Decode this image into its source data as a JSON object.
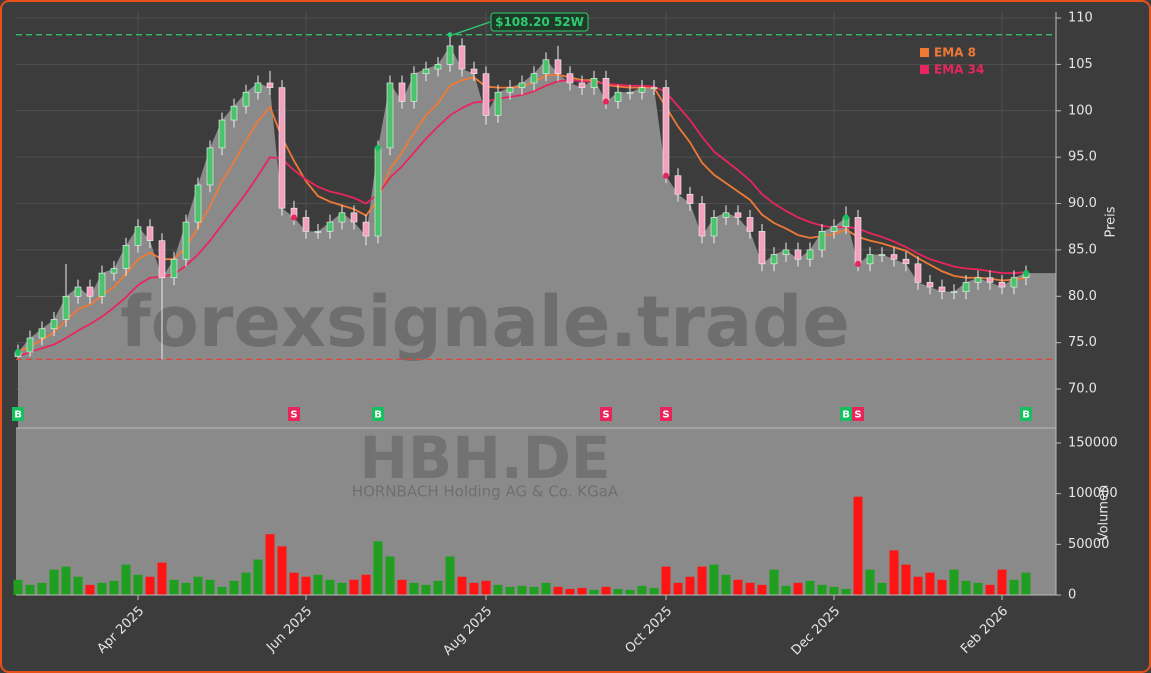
{
  "chart_data": {
    "type": "candlestick",
    "watermark": "forexsignale.trade",
    "symbol": "HBH.DE",
    "company": "HORNBACH Holding AG & Co. KGaA",
    "y_label": "Preis",
    "volume_label": "Volumen",
    "high_52w": 108.2,
    "high_label": "$108.20 52W",
    "high_index_candle": 36,
    "low_52w": 73.2,
    "high_color": "#2ecc71",
    "low_color": "#e0453a",
    "up_color": "#49c46a",
    "down_color": "#f2a0bd",
    "volume_up_color": "#1f9e1f",
    "volume_down_color": "#ff1414",
    "area_color": "#8a8a8a",
    "signal_colors": {
      "B": "#16c060",
      "S": "#e8245a"
    },
    "grid": true,
    "legend": "upper-right",
    "ylim": [
      65.8,
      110.65
    ],
    "yticks": [
      {
        "value": 70,
        "label": "70.0"
      },
      {
        "value": 75,
        "label": "75.0"
      },
      {
        "value": 80,
        "label": "80.0"
      },
      {
        "value": 85,
        "label": "85.0"
      },
      {
        "value": 90,
        "label": "90.0"
      },
      {
        "value": 95,
        "label": "95.0"
      },
      {
        "value": 100,
        "label": "100"
      },
      {
        "value": 105,
        "label": "105"
      },
      {
        "value": 110,
        "label": "110"
      }
    ],
    "volume_ylim": [
      0,
      164800
    ],
    "volume_yticks": [
      0,
      50000,
      100000,
      150000
    ],
    "categories": [
      null,
      null,
      null,
      null,
      null,
      null,
      null,
      null,
      null,
      null,
      "Apr 2025",
      null,
      null,
      null,
      null,
      null,
      null,
      null,
      null,
      null,
      null,
      null,
      null,
      null,
      "Jun 2025",
      null,
      null,
      null,
      null,
      null,
      null,
      null,
      null,
      null,
      null,
      null,
      null,
      null,
      null,
      "Aug 2025",
      null,
      null,
      null,
      null,
      null,
      null,
      null,
      null,
      null,
      null,
      null,
      null,
      null,
      null,
      "Oct 2025",
      null,
      null,
      null,
      null,
      null,
      null,
      null,
      null,
      null,
      null,
      null,
      null,
      null,
      "Dec 2025",
      null,
      null,
      null,
      null,
      null,
      null,
      null,
      null,
      null,
      null,
      null,
      null,
      null,
      "Feb 2026",
      null,
      null
    ],
    "signals": [
      "B",
      null,
      null,
      null,
      null,
      null,
      null,
      null,
      null,
      null,
      null,
      null,
      null,
      null,
      null,
      null,
      null,
      null,
      null,
      null,
      null,
      null,
      null,
      "S",
      null,
      null,
      null,
      null,
      null,
      null,
      "B",
      null,
      null,
      null,
      null,
      null,
      null,
      null,
      null,
      null,
      null,
      null,
      null,
      null,
      null,
      null,
      null,
      null,
      null,
      "S",
      null,
      null,
      null,
      null,
      "S",
      null,
      null,
      null,
      null,
      null,
      null,
      null,
      null,
      null,
      null,
      null,
      null,
      null,
      null,
      "B",
      "S",
      null,
      null,
      null,
      null,
      null,
      null,
      null,
      null,
      null,
      null,
      null,
      null,
      null,
      "B"
    ],
    "open": [
      73.5,
      74,
      75.5,
      76.5,
      77.5,
      80,
      81,
      80,
      82.5,
      83,
      85.5,
      87.5,
      86,
      82,
      84,
      88,
      92,
      96,
      99,
      100.5,
      102,
      103,
      102.5,
      89.5,
      88.5,
      87,
      87,
      88,
      89,
      88,
      86.5,
      96,
      103,
      101,
      104,
      104.5,
      105,
      107,
      104.5,
      104,
      99.5,
      102,
      102.5,
      103,
      104,
      105.5,
      104,
      103,
      102.5,
      103.5,
      101,
      102,
      102,
      102.5,
      102.5,
      93,
      91,
      90,
      86.5,
      88.5,
      89,
      88.5,
      87,
      83.5,
      84.5,
      85,
      84,
      85,
      87,
      87.5,
      88.5,
      83.5,
      84.5,
      84.5,
      84,
      83.5,
      81.5,
      81,
      80.5,
      80.5,
      81.5,
      82,
      81.5,
      81,
      82
    ],
    "high": [
      74.8,
      76.3,
      77.3,
      78.3,
      83.5,
      81.8,
      81.8,
      83.3,
      83.8,
      86.3,
      88.3,
      88.3,
      86.8,
      84.8,
      88.8,
      92.8,
      96.8,
      99.8,
      101.3,
      102.8,
      103.8,
      104.3,
      103.3,
      90.3,
      89.3,
      87.8,
      88.8,
      89.8,
      89.8,
      88.8,
      96.8,
      103.8,
      103.8,
      104.8,
      105.3,
      105.8,
      108.2,
      107.8,
      105.3,
      104.8,
      102.8,
      103.3,
      103.8,
      104.8,
      106.3,
      107,
      104.8,
      103.8,
      104.3,
      104.3,
      102.8,
      102.8,
      103.3,
      103.3,
      103.3,
      93.8,
      91.8,
      90.8,
      89.3,
      89.8,
      89.8,
      89.3,
      87.8,
      85.3,
      85.8,
      85.8,
      85.8,
      87.8,
      88.3,
      89.7,
      89.3,
      85.3,
      85.3,
      85.3,
      84.8,
      84.3,
      82.3,
      81.8,
      81.3,
      82.3,
      82.8,
      82.8,
      82.3,
      82.8,
      83.3
    ],
    "low": [
      73.3,
      73.5,
      74.7,
      75.7,
      76.7,
      79.2,
      79.2,
      79.2,
      81.7,
      82.2,
      84.7,
      85.2,
      73.2,
      81.2,
      83.2,
      87.2,
      91.2,
      95.2,
      98.2,
      99.7,
      101.2,
      101.7,
      88.7,
      87.7,
      86.2,
      86.2,
      86.2,
      87.2,
      87.2,
      85.5,
      85.7,
      95.2,
      100.2,
      100.2,
      103.2,
      103.7,
      104.2,
      103.7,
      103.2,
      98.5,
      98.7,
      101.2,
      101.7,
      102.2,
      103.2,
      103.2,
      102.2,
      101.7,
      101.7,
      100.2,
      100.2,
      101.2,
      101.2,
      101.7,
      92.2,
      90.2,
      89.2,
      85.7,
      85.7,
      87.7,
      87.7,
      86.2,
      82.7,
      82.7,
      83.7,
      83.2,
      83.2,
      84.2,
      86.2,
      86.7,
      82.7,
      82.7,
      83.7,
      83.2,
      82.7,
      80.7,
      80.2,
      79.7,
      79.7,
      79.7,
      80.7,
      80.7,
      80.2,
      80.2,
      81.2
    ],
    "close": [
      74,
      75.5,
      76.5,
      77.5,
      80,
      81,
      80,
      82.5,
      83,
      85.5,
      87.5,
      86,
      82,
      84,
      88,
      92,
      96,
      99,
      100.5,
      102,
      103,
      102.5,
      89.5,
      88.5,
      87,
      87,
      88,
      89,
      88,
      86.5,
      96,
      103,
      101,
      104,
      104.5,
      105,
      107,
      104.5,
      104,
      99.5,
      102,
      102.5,
      103,
      104,
      105.5,
      104,
      103,
      102.5,
      103.5,
      101,
      102,
      102,
      102.5,
      102.5,
      93,
      91,
      90,
      86.5,
      88.5,
      89,
      88.5,
      87,
      83.5,
      84.5,
      85,
      84,
      85,
      87,
      87.5,
      88.5,
      83.5,
      84.5,
      84.5,
      84,
      83.5,
      81.5,
      81,
      80.5,
      80.5,
      81.5,
      82,
      81.5,
      81,
      82,
      82.5
    ],
    "volume": [
      15000,
      10000,
      12000,
      25000,
      28000,
      18000,
      10000,
      12000,
      14000,
      30000,
      20000,
      18000,
      32000,
      15000,
      12000,
      18000,
      15000,
      8000,
      14000,
      22000,
      35000,
      60000,
      48000,
      22000,
      18000,
      20000,
      15000,
      12000,
      15000,
      20000,
      53000,
      38000,
      15000,
      12000,
      10000,
      14000,
      38000,
      18000,
      12000,
      14000,
      10000,
      8000,
      9000,
      8000,
      12000,
      8000,
      6000,
      7000,
      5000,
      8000,
      6000,
      5000,
      9000,
      7000,
      28000,
      12000,
      18000,
      28000,
      30000,
      20000,
      15000,
      12000,
      10000,
      25000,
      9000,
      12000,
      14000,
      10000,
      8000,
      6000,
      97000,
      25000,
      12000,
      44000,
      30000,
      18000,
      22000,
      15000,
      25000,
      14000,
      12000,
      10000,
      25000,
      15000,
      22000
    ],
    "ema": [
      {
        "name": "EMA 8",
        "color": "#f07a35",
        "values": [
          74,
          74.6,
          75.3,
          76.1,
          77.4,
          78.6,
          79.1,
          80.1,
          81,
          82.4,
          84,
          84.7,
          84,
          84,
          85.3,
          87.4,
          89.7,
          92.4,
          94.5,
          96.8,
          98.9,
          100.4,
          97.1,
          94.6,
          92.4,
          90.8,
          90.2,
          89.8,
          89.4,
          88.7,
          90.4,
          93.7,
          95.5,
          97.6,
          99.5,
          100.8,
          102.7,
          103.3,
          103.6,
          102.6,
          102.5,
          102.5,
          102.6,
          103.1,
          103.8,
          103.9,
          103.6,
          103.3,
          103.3,
          102.8,
          102.6,
          102.5,
          102.5,
          102.5,
          100.4,
          98.3,
          96.6,
          94.4,
          93.1,
          92.2,
          91.3,
          90.4,
          88.8,
          87.9,
          87.3,
          86.6,
          86.3,
          86.5,
          86.7,
          87.2,
          86.4,
          86,
          85.7,
          85.3,
          84.9,
          84.1,
          83.4,
          82.7,
          82.2,
          82,
          82,
          81.9,
          81.7,
          81.8,
          82
        ]
      },
      {
        "name": "EMA 34",
        "color": "#e8265e",
        "values": [
          73.5,
          74,
          74.4,
          74.8,
          75.5,
          76.3,
          77,
          77.8,
          78.8,
          79.9,
          81.2,
          82,
          82.1,
          82.4,
          83.3,
          84.5,
          86,
          87.7,
          89.4,
          91.1,
          93,
          95,
          94.8,
          93.6,
          92.6,
          91.8,
          91.3,
          91,
          90.6,
          90,
          91,
          92.8,
          94,
          95.5,
          97,
          98.3,
          99.5,
          100.3,
          100.9,
          101,
          101.3,
          101.5,
          101.7,
          102.1,
          102.7,
          103.2,
          103.3,
          103.2,
          103.1,
          102.9,
          102.8,
          102.7,
          102.7,
          102.6,
          102,
          100.5,
          99,
          97.2,
          95.6,
          94.6,
          93.6,
          92.5,
          91,
          90,
          89.2,
          88.5,
          88,
          87.6,
          87.4,
          87.5,
          87.3,
          86.8,
          86.4,
          85.9,
          85.3,
          84.6,
          84,
          83.6,
          83.2,
          83,
          82.9,
          82.7,
          82.5,
          82.5,
          82.6
        ]
      }
    ]
  }
}
